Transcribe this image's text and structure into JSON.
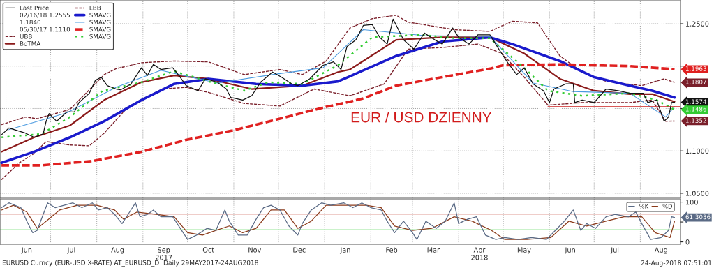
{
  "chart_data": [
    {
      "type": "line",
      "title": "EUR / USD DZIENNY",
      "xlim": [
        "2017-05-28",
        "2018-08-28"
      ],
      "ylim": [
        1.045,
        1.278
      ],
      "yticks": [
        {
          "value": 1.05,
          "label": "1.0500"
        },
        {
          "value": 1.1,
          "label": "1.1000"
        },
        {
          "value": 1.15,
          "label": null
        },
        {
          "value": 1.2,
          "label": null
        },
        {
          "value": 1.25,
          "label": "1.2500"
        }
      ],
      "xticks": [
        {
          "value": "2017-06-01",
          "label": null
        },
        {
          "value": "2017-07-01",
          "label": null
        },
        {
          "value": "2017-08-01",
          "label": null
        },
        {
          "value": "2017-09-01",
          "label": null
        },
        {
          "value": "2017-10-01",
          "label": null
        },
        {
          "value": "2017-11-01",
          "label": null
        },
        {
          "value": "2017-12-01",
          "label": null
        },
        {
          "value": "2018-01-01",
          "label": null
        },
        {
          "value": "2018-02-01",
          "label": null
        },
        {
          "value": "2018-03-01",
          "label": null
        },
        {
          "value": "2018-04-01",
          "label": null
        },
        {
          "value": "2018-05-01",
          "label": null
        },
        {
          "value": "2018-06-01",
          "label": null
        },
        {
          "value": "2018-07-01",
          "label": null
        },
        {
          "value": "2018-08-01",
          "label": null
        }
      ],
      "tick_labels": "y",
      "grid": true,
      "legend": "top left",
      "annotations": [
        "02/16/18 1.2555",
        "1.1840",
        "05/30/17 1.1110"
      ],
      "series": [
        {
          "name": "Last Price",
          "color": "#111111",
          "x": [
            "2017-05-29",
            "2017-06-03",
            "2017-06-14",
            "2017-06-20",
            "2017-06-26",
            "2017-06-28",
            "2017-06-30",
            "2017-07-05",
            "2017-07-12",
            "2017-07-17",
            "2017-07-20",
            "2017-07-27",
            "2017-07-31",
            "2017-08-04",
            "2017-08-08",
            "2017-08-14",
            "2017-08-17",
            "2017-08-24",
            "2017-08-28",
            "2017-08-31",
            "2017-09-04",
            "2017-09-08",
            "2017-09-13",
            "2017-09-21",
            "2017-09-26",
            "2017-09-30",
            "2017-10-08",
            "2017-10-13",
            "2017-10-21",
            "2017-10-27",
            "2017-10-30",
            "2017-11-07",
            "2017-11-13",
            "2017-11-19",
            "2017-11-27",
            "2017-12-03",
            "2017-12-10",
            "2017-12-14",
            "2017-12-22",
            "2017-12-31",
            "2018-01-07",
            "2018-01-12",
            "2018-01-16",
            "2018-01-22",
            "2018-01-27",
            "2018-02-02",
            "2018-02-07",
            "2018-02-12",
            "2018-02-16",
            "2018-02-23",
            "2018-03-02",
            "2018-03-09",
            "2018-03-16",
            "2018-03-21",
            "2018-03-28",
            "2018-04-01",
            "2018-04-08",
            "2018-04-14",
            "2018-04-22",
            "2018-04-28",
            "2018-05-04",
            "2018-05-10",
            "2018-05-15",
            "2018-05-21",
            "2018-05-28",
            "2018-06-01",
            "2018-06-04",
            "2018-06-12",
            "2018-06-17",
            "2018-06-18",
            "2018-06-23",
            "2018-07-01",
            "2018-07-09",
            "2018-07-17",
            "2018-07-25",
            "2018-08-03",
            "2018-08-06",
            "2018-08-12",
            "2018-08-16",
            "2018-08-17",
            "2018-08-20",
            "2018-08-22",
            "2018-08-24"
          ],
          "values": [
            1.119,
            1.127,
            1.121,
            1.116,
            1.12,
            1.135,
            1.144,
            1.135,
            1.146,
            1.146,
            1.157,
            1.168,
            1.183,
            1.187,
            1.177,
            1.173,
            1.172,
            1.179,
            1.19,
            1.198,
            1.189,
            1.202,
            1.196,
            1.198,
            1.187,
            1.177,
            1.171,
            1.185,
            1.181,
            1.173,
            1.163,
            1.16,
            1.165,
            1.181,
            1.193,
            1.187,
            1.179,
            1.177,
            1.185,
            1.201,
            1.205,
            1.196,
            1.223,
            1.231,
            1.248,
            1.249,
            1.234,
            1.226,
            1.2555,
            1.231,
            1.22,
            1.239,
            1.231,
            1.226,
            1.245,
            1.234,
            1.226,
            1.237,
            1.237,
            1.22,
            1.204,
            1.19,
            1.198,
            1.179,
            1.171,
            1.157,
            1.173,
            1.179,
            1.179,
            1.157,
            1.16,
            1.157,
            1.173,
            1.171,
            1.168,
            1.168,
            1.157,
            1.16,
            1.14,
            1.135,
            1.14,
            1.157,
            1.1574
          ],
          "value_labels": [
            null,
            null,
            null,
            null,
            null,
            null,
            null,
            null,
            null,
            null,
            null,
            null,
            null,
            null,
            null,
            null,
            null,
            null,
            null,
            null,
            null,
            null,
            null,
            null,
            null,
            null,
            null,
            null,
            null,
            null,
            null,
            null,
            null,
            null,
            null,
            null,
            null,
            null,
            null,
            null,
            null,
            null,
            null,
            null,
            null,
            null,
            null,
            null,
            null,
            null,
            null,
            null,
            null,
            null,
            null,
            null,
            null,
            null,
            null,
            null,
            null,
            null,
            null,
            null,
            null,
            null,
            null,
            null,
            null,
            null,
            null,
            null,
            null,
            null,
            null,
            null,
            null,
            null,
            null,
            null,
            null,
            null,
            "1.1574"
          ]
        },
        {
          "name": "UBB",
          "color": "#7a1f2a",
          "line_style": "dashed",
          "x": [
            "2017-05-29",
            "2017-06-14",
            "2017-06-22",
            "2017-07-14",
            "2017-08-06",
            "2017-08-14",
            "2017-08-31",
            "2017-09-22",
            "2017-10-15",
            "2017-11-08",
            "2017-12-02",
            "2017-12-17",
            "2018-01-02",
            "2018-01-18",
            "2018-02-02",
            "2018-02-18",
            "2018-02-26",
            "2018-03-29",
            "2018-04-22",
            "2018-05-07",
            "2018-05-24",
            "2018-06-08",
            "2018-06-23",
            "2018-07-09",
            "2018-08-02",
            "2018-08-17",
            "2018-08-24"
          ],
          "values": [
            1.131,
            1.14,
            1.138,
            1.149,
            1.19,
            1.197,
            1.204,
            1.206,
            1.205,
            1.19,
            1.196,
            1.19,
            1.206,
            1.245,
            1.256,
            1.26,
            1.252,
            1.243,
            1.241,
            1.253,
            1.251,
            1.212,
            1.193,
            1.182,
            1.177,
            1.185,
            1.1807
          ],
          "value_labels": [
            null,
            null,
            null,
            null,
            null,
            null,
            null,
            null,
            null,
            null,
            null,
            null,
            null,
            null,
            null,
            null,
            null,
            null,
            null,
            null,
            null,
            null,
            null,
            null,
            null,
            null,
            "1.1807"
          ]
        },
        {
          "name": "BoTMA",
          "color": "#8b1a1a",
          "x": [
            "2017-05-29",
            "2017-06-20",
            "2017-07-14",
            "2017-08-06",
            "2017-08-31",
            "2017-09-22",
            "2017-10-15",
            "2017-11-13",
            "2017-12-17",
            "2018-01-10",
            "2018-01-18",
            "2018-02-18",
            "2018-03-21",
            "2018-04-22",
            "2018-05-15",
            "2018-06-08",
            "2018-07-01",
            "2018-07-25",
            "2018-08-09",
            "2018-08-24"
          ],
          "values": [
            1.099,
            1.116,
            1.13,
            1.16,
            1.181,
            1.189,
            1.185,
            1.173,
            1.177,
            1.193,
            1.196,
            1.231,
            1.234,
            1.234,
            1.215,
            1.185,
            1.171,
            1.167,
            1.167,
            1.158
          ]
        },
        {
          "name": "LBB",
          "color": "#7a1f2a",
          "line_style": "dashed",
          "x": [
            "2017-05-29",
            "2017-06-10",
            "2017-06-20",
            "2017-06-28",
            "2017-07-14",
            "2017-07-27",
            "2017-08-06",
            "2017-08-22",
            "2017-09-14",
            "2017-09-30",
            "2017-10-15",
            "2017-11-08",
            "2017-12-02",
            "2017-12-25",
            "2018-01-18",
            "2018-02-10",
            "2018-02-26",
            "2018-03-21",
            "2018-04-14",
            "2018-04-30",
            "2018-05-15",
            "2018-05-31",
            "2018-06-23",
            "2018-07-25",
            "2018-08-09",
            "2018-08-18",
            "2018-08-24"
          ],
          "values": [
            1.066,
            1.086,
            1.097,
            1.111,
            1.107,
            1.106,
            1.121,
            1.152,
            1.173,
            1.175,
            1.169,
            1.156,
            1.153,
            1.173,
            1.165,
            1.179,
            1.22,
            1.222,
            1.226,
            1.215,
            1.187,
            1.154,
            1.157,
            1.157,
            1.16,
            1.135,
            1.1352
          ],
          "value_labels": [
            null,
            null,
            null,
            null,
            null,
            null,
            null,
            null,
            null,
            null,
            null,
            null,
            null,
            null,
            null,
            null,
            null,
            null,
            null,
            null,
            null,
            null,
            null,
            null,
            null,
            null,
            "1.1352"
          ]
        },
        {
          "name": "SMAVG",
          "color": "#1a1acc",
          "x": [
            "2017-05-29",
            "2017-06-20",
            "2017-07-14",
            "2017-08-06",
            "2017-08-31",
            "2017-09-22",
            "2017-10-15",
            "2017-11-16",
            "2017-12-17",
            "2018-01-10",
            "2018-01-18",
            "2018-02-18",
            "2018-03-21",
            "2018-04-22",
            "2018-05-07",
            "2018-06-08",
            "2018-07-01",
            "2018-07-25",
            "2018-08-09",
            "2018-08-24"
          ],
          "values": [
            1.086,
            1.099,
            1.116,
            1.135,
            1.16,
            1.179,
            1.185,
            1.179,
            1.177,
            1.182,
            1.188,
            1.212,
            1.229,
            1.234,
            1.226,
            1.206,
            1.187,
            1.177,
            1.171,
            1.163
          ]
        },
        {
          "name": "SMAVG",
          "color": "#4a9ae0",
          "x": [
            "2017-06-03",
            "2017-07-12",
            "2017-08-14",
            "2017-09-13",
            "2017-10-21",
            "2017-11-27",
            "2017-12-31",
            "2018-01-27",
            "2018-03-09",
            "2018-04-22",
            "2018-05-21",
            "2018-06-17",
            "2018-07-25",
            "2018-08-18",
            "2018-08-24"
          ],
          "values": [
            1.125,
            1.145,
            1.175,
            1.195,
            1.18,
            1.19,
            1.198,
            1.243,
            1.236,
            1.235,
            1.18,
            1.17,
            1.168,
            1.14,
            1.152
          ]
        },
        {
          "name": "SMAVG",
          "color": "#e02020",
          "line_style": "dashed",
          "x": [
            "2017-05-29",
            "2017-06-25",
            "2017-07-29",
            "2017-08-31",
            "2017-09-30",
            "2017-10-31",
            "2017-12-02",
            "2018-01-02",
            "2018-01-18",
            "2018-01-27",
            "2018-02-18",
            "2018-03-21",
            "2018-04-22",
            "2018-05-01",
            "2018-06-08",
            "2018-07-25",
            "2018-08-24"
          ],
          "values": [
            1.083,
            1.083,
            1.088,
            1.099,
            1.113,
            1.124,
            1.138,
            1.152,
            1.158,
            1.162,
            1.177,
            1.187,
            1.197,
            1.201,
            1.202,
            1.2,
            1.1963
          ],
          "value_labels": [
            null,
            null,
            null,
            null,
            null,
            null,
            null,
            null,
            null,
            null,
            null,
            null,
            null,
            null,
            null,
            null,
            "1.1963"
          ]
        },
        {
          "name": "SMAVG",
          "color": "#33cc33",
          "line_style": "dotted",
          "x": [
            "2017-05-29",
            "2017-06-25",
            "2017-07-14",
            "2017-08-05",
            "2017-08-31",
            "2017-09-22",
            "2017-10-15",
            "2017-11-08",
            "2017-11-24",
            "2017-12-17",
            "2018-01-10",
            "2018-02-02",
            "2018-03-06",
            "2018-03-29",
            "2018-04-22",
            "2018-05-15",
            "2018-05-31",
            "2018-06-23",
            "2018-07-25",
            "2018-08-12",
            "2018-08-24"
          ],
          "values": [
            1.116,
            1.12,
            1.14,
            1.171,
            1.181,
            1.194,
            1.182,
            1.171,
            1.181,
            1.179,
            1.201,
            1.234,
            1.237,
            1.233,
            1.233,
            1.198,
            1.171,
            1.165,
            1.168,
            1.16,
            1.1486
          ],
          "value_labels": [
            null,
            null,
            null,
            null,
            null,
            null,
            null,
            null,
            null,
            null,
            null,
            null,
            null,
            null,
            null,
            null,
            null,
            null,
            null,
            null,
            "1.1486"
          ]
        },
        {
          "type": "line",
          "color": "#cc2222",
          "x": [
            "2018-05-31",
            "2018-08-28"
          ],
          "values": [
            1.152,
            1.152
          ]
        }
      ]
    },
    {
      "type": "line",
      "xlim": [
        "2017-05-28",
        "2018-08-28"
      ],
      "ylim": [
        -6,
        108
      ],
      "yticks": [
        0,
        {
          "value": 50,
          "label": null
        },
        100
      ],
      "xticks": [
        {
          "value": "2017-06-01",
          "label": null
        },
        {
          "value": "2017-06-15",
          "label": "Jun"
        },
        {
          "value": "2017-07-01",
          "label": null
        },
        {
          "value": "2017-07-15",
          "label": "Jul"
        },
        {
          "value": "2017-08-01",
          "label": null
        },
        {
          "value": "2017-08-15",
          "label": "Aug"
        },
        {
          "value": "2017-09-01",
          "label": null
        },
        {
          "value": "2017-09-15",
          "label": "Sep\n2017"
        },
        {
          "value": "2017-10-01",
          "label": null
        },
        {
          "value": "2017-10-15",
          "label": "Oct"
        },
        {
          "value": "2017-11-01",
          "label": null
        },
        {
          "value": "2017-11-15",
          "label": "Nov"
        },
        {
          "value": "2017-12-01",
          "label": null
        },
        {
          "value": "2017-12-15",
          "label": "Dec"
        },
        {
          "value": "2018-01-01",
          "label": null
        },
        {
          "value": "2018-01-15",
          "label": "Jan"
        },
        {
          "value": "2018-02-01",
          "label": null
        },
        {
          "value": "2018-02-15",
          "label": "Feb"
        },
        {
          "value": "2018-03-01",
          "label": null
        },
        {
          "value": "2018-03-15",
          "label": "Mar"
        },
        {
          "value": "2018-04-01",
          "label": null
        },
        {
          "value": "2018-04-15",
          "label": "Apr\n2018"
        },
        {
          "value": "2018-05-01",
          "label": null
        },
        {
          "value": "2018-05-15",
          "label": "May"
        },
        {
          "value": "2018-06-01",
          "label": null
        },
        {
          "value": "2018-06-15",
          "label": "Jun"
        },
        {
          "value": "2018-07-01",
          "label": null
        },
        {
          "value": "2018-07-15",
          "label": "Jul"
        },
        {
          "value": "2018-08-01",
          "label": null
        },
        {
          "value": "2018-08-15",
          "label": "Aug"
        }
      ],
      "grid": "x",
      "legend": "top right",
      "ref_lines": [
        {
          "axis": "y",
          "value": 70,
          "color": "#c0392b"
        },
        {
          "axis": "y",
          "value": 30,
          "color": "#33cc33"
        }
      ],
      "annotations": [
        "EURUSD Curncy (EUR-USD X-RATE) AT_EURUSD_D  Daily 29MAY2017-24AUG2018",
        "24-Aug-2018 07:51:01"
      ],
      "series": [
        {
          "name": "%K",
          "color": "#5a6a85",
          "x": [
            "2017-05-29",
            "2017-06-03",
            "2017-06-11",
            "2017-06-15",
            "2017-06-19",
            "2017-06-22",
            "2017-06-26",
            "2017-06-29",
            "2017-07-04",
            "2017-07-10",
            "2017-07-16",
            "2017-07-22",
            "2017-07-29",
            "2017-08-02",
            "2017-08-08",
            "2017-08-13",
            "2017-08-18",
            "2017-08-22",
            "2017-08-27",
            "2017-08-30",
            "2017-09-04",
            "2017-09-08",
            "2017-09-13",
            "2017-09-21",
            "2017-09-27",
            "2017-10-01",
            "2017-10-07",
            "2017-10-14",
            "2017-10-20",
            "2017-10-26",
            "2017-10-29",
            "2017-11-04",
            "2017-11-10",
            "2017-11-16",
            "2017-11-21",
            "2017-11-26",
            "2017-12-02",
            "2017-12-08",
            "2017-12-14",
            "2017-12-17",
            "2017-12-23",
            "2017-12-30",
            "2018-01-05",
            "2018-01-14",
            "2018-01-20",
            "2018-01-26",
            "2018-02-01",
            "2018-02-08",
            "2018-02-12",
            "2018-02-17",
            "2018-02-23",
            "2018-03-01",
            "2018-03-04",
            "2018-03-10",
            "2018-03-17",
            "2018-03-23",
            "2018-03-29",
            "2018-04-01",
            "2018-04-07",
            "2018-04-13",
            "2018-04-19",
            "2018-04-26",
            "2018-05-02",
            "2018-05-11",
            "2018-05-20",
            "2018-05-30",
            "2018-06-05",
            "2018-06-11",
            "2018-06-17",
            "2018-06-22",
            "2018-06-26",
            "2018-07-02",
            "2018-07-09",
            "2018-07-15",
            "2018-07-24",
            "2018-07-29",
            "2018-08-02",
            "2018-08-08",
            "2018-08-15",
            "2018-08-20",
            "2018-08-22",
            "2018-08-24"
          ],
          "values": [
            86,
            98,
            86,
            52,
            23,
            29,
            69,
            98,
            86,
            92,
            98,
            86,
            98,
            80,
            86,
            69,
            46,
            69,
            98,
            63,
            69,
            80,
            63,
            63,
            29,
            6,
            17,
            34,
            29,
            80,
            52,
            17,
            17,
            57,
            86,
            92,
            80,
            40,
            17,
            46,
            80,
            98,
            92,
            98,
            86,
            98,
            86,
            80,
            52,
            23,
            52,
            23,
            6,
            52,
            34,
            52,
            98,
            46,
            57,
            63,
            17,
            6,
            11,
            6,
            11,
            6,
            29,
            52,
            80,
            29,
            46,
            34,
            63,
            69,
            63,
            75,
            46,
            6,
            11,
            29,
            63,
            61.3036
          ],
          "value_labels": [
            null,
            null,
            null,
            null,
            null,
            null,
            null,
            null,
            null,
            null,
            null,
            null,
            null,
            null,
            null,
            null,
            null,
            null,
            null,
            null,
            null,
            null,
            null,
            null,
            null,
            null,
            null,
            null,
            null,
            null,
            null,
            null,
            null,
            null,
            null,
            null,
            null,
            null,
            null,
            null,
            null,
            null,
            null,
            null,
            null,
            null,
            null,
            null,
            null,
            null,
            null,
            null,
            null,
            null,
            null,
            null,
            null,
            null,
            null,
            null,
            null,
            null,
            null,
            null,
            null,
            null,
            null,
            null,
            null,
            null,
            null,
            null,
            null,
            null,
            null,
            null,
            null,
            null,
            null,
            null,
            null,
            "61.3036"
          ]
        },
        {
          "name": "%D",
          "color": "#8b3a1a",
          "x": [
            "2017-05-29",
            "2017-06-06",
            "2017-06-15",
            "2017-06-22",
            "2017-06-28",
            "2017-07-07",
            "2017-07-19",
            "2017-08-01",
            "2017-08-13",
            "2017-08-19",
            "2017-08-28",
            "2017-09-10",
            "2017-09-22",
            "2017-10-01",
            "2017-10-11",
            "2017-10-20",
            "2017-10-29",
            "2017-11-07",
            "2017-11-16",
            "2017-11-26",
            "2017-12-05",
            "2017-12-14",
            "2017-12-23",
            "2018-01-02",
            "2018-01-17",
            "2018-01-29",
            "2018-02-08",
            "2018-02-17",
            "2018-03-01",
            "2018-03-14",
            "2018-03-29",
            "2018-04-10",
            "2018-04-23",
            "2018-05-02",
            "2018-05-17",
            "2018-06-02",
            "2018-06-14",
            "2018-06-26",
            "2018-07-09",
            "2018-07-21",
            "2018-08-02",
            "2018-08-11",
            "2018-08-21",
            "2018-08-24"
          ],
          "values": [
            80,
            92,
            75,
            34,
            52,
            80,
            92,
            92,
            80,
            57,
            75,
            69,
            63,
            23,
            17,
            29,
            40,
            23,
            34,
            80,
            80,
            34,
            52,
            92,
            92,
            92,
            86,
            40,
            29,
            34,
            63,
            52,
            29,
            6,
            6,
            11,
            52,
            40,
            52,
            63,
            63,
            23,
            11,
            52
          ]
        }
      ]
    }
  ]
}
